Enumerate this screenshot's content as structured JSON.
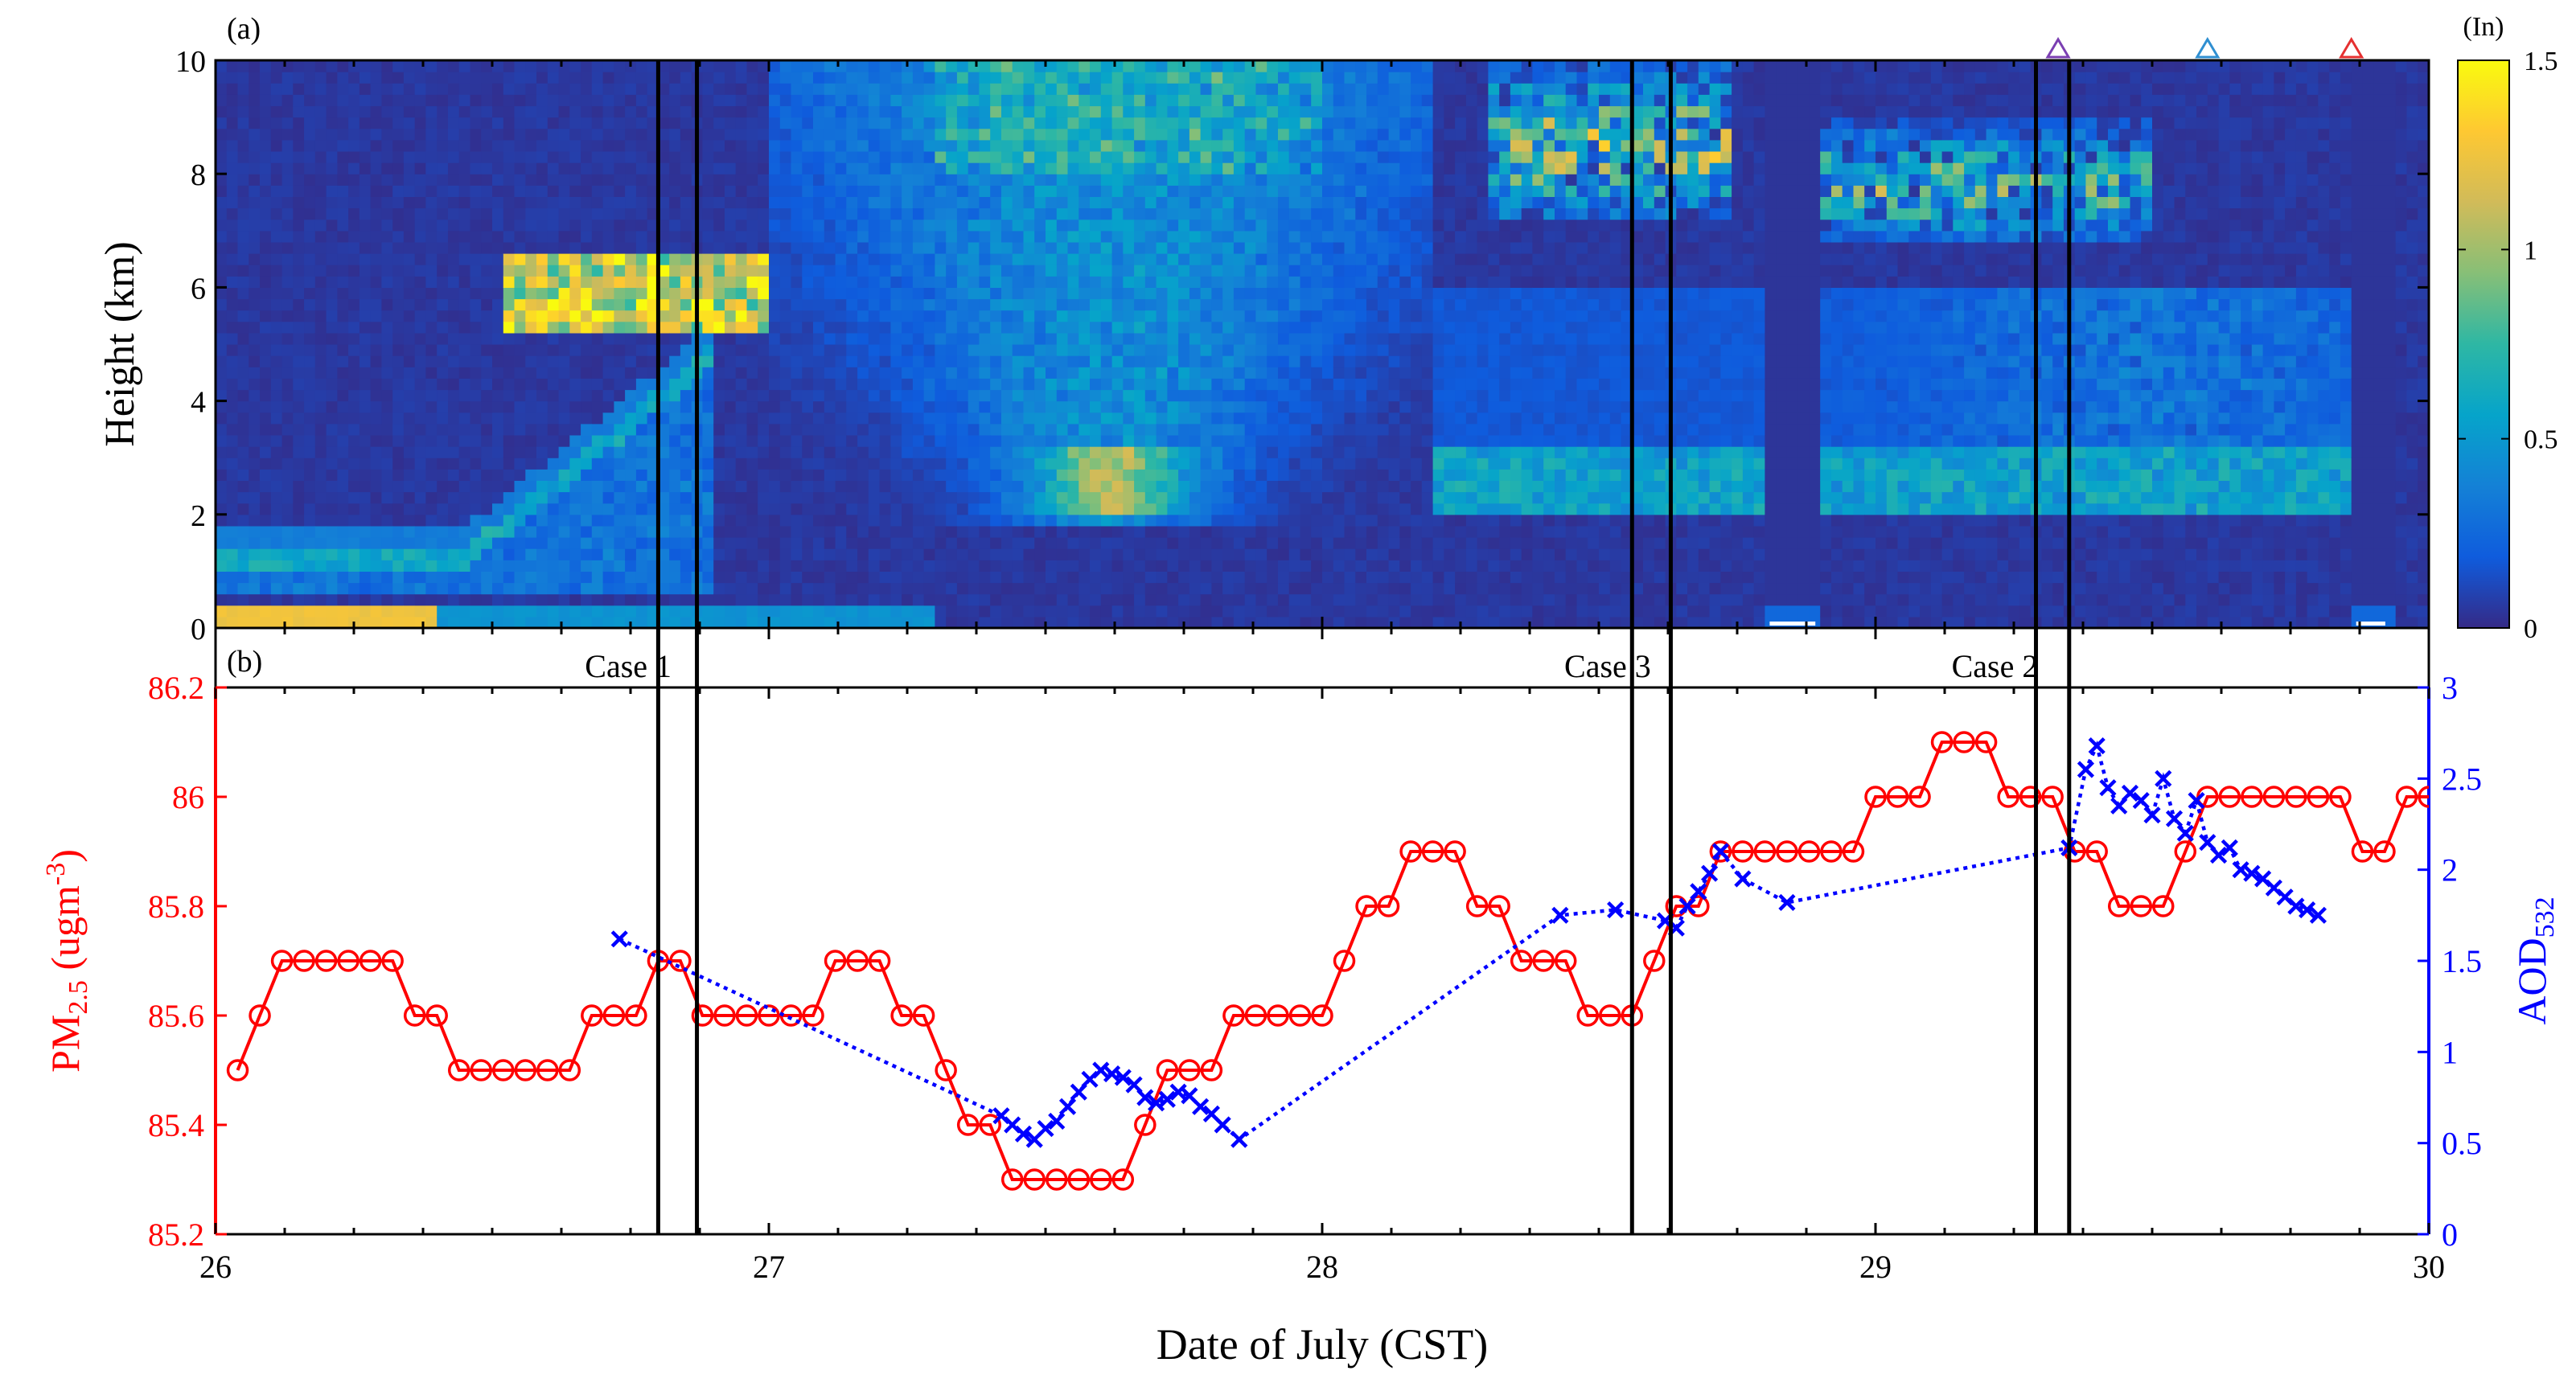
{
  "chart_data": [
    {
      "panel_label": "(a)",
      "type": "heatmap",
      "title": "",
      "xlabel": "",
      "ylabel": "Height (km)",
      "xlim": [
        26,
        30
      ],
      "ylim": [
        0,
        10
      ],
      "yticks": [
        0,
        2,
        4,
        6,
        8,
        10
      ],
      "ytick_labels": [
        "0",
        "2",
        "4",
        "6",
        "8",
        "10"
      ],
      "colorbar": {
        "label": "(In)",
        "range": [
          0,
          1.5
        ],
        "ticks": [
          0,
          0.5,
          1,
          1.5
        ],
        "tick_labels": [
          "0",
          "0.5",
          "1",
          "1.5"
        ],
        "colormap": [
          "#352a87",
          "#0f5cdd",
          "#1481d6",
          "#06a4ca",
          "#2eb7a4",
          "#87bf77",
          "#d1bb59",
          "#fec832",
          "#f9fb0e"
        ]
      },
      "features": [
        {
          "name": "near-surface aerosol layer",
          "x": [
            26.0,
            27.3
          ],
          "y": [
            0.1,
            0.4
          ],
          "intensity": 1.2
        },
        {
          "name": "boundary layer top",
          "x": [
            26.0,
            26.6
          ],
          "y": [
            1.2,
            1.8
          ],
          "intensity": 0.7
        },
        {
          "name": "mid-level cloud",
          "x": [
            26.52,
            27.0
          ],
          "y": [
            5.6,
            6.5
          ],
          "intensity": 1.5
        },
        {
          "name": "mid-level aerosol layer",
          "x": [
            27.4,
            29.9
          ],
          "y": [
            2.0,
            3.2
          ],
          "intensity": 0.55
        },
        {
          "name": "high cirrus",
          "x": [
            28.3,
            29.7
          ],
          "y": [
            7.0,
            10.0
          ],
          "intensity": 1.5
        }
      ],
      "data_gaps": [
        [
          28.8,
          28.9
        ],
        [
          29.86,
          29.93
        ]
      ],
      "markers": [
        {
          "shape": "triangle",
          "x": 29.33,
          "color": "#7b3fb2"
        },
        {
          "shape": "triangle",
          "x": 29.6,
          "color": "#2f8fd1"
        },
        {
          "shape": "triangle",
          "x": 29.86,
          "color": "#e53030"
        }
      ]
    },
    {
      "panel_label": "(b)",
      "type": "line",
      "xlabel": "Date of July (CST)",
      "xlim": [
        26,
        30
      ],
      "xticks": [
        26,
        27,
        28,
        29,
        30
      ],
      "xtick_labels": [
        "26",
        "27",
        "28",
        "29",
        "30"
      ],
      "ylabel_left": "PM",
      "ylabel_left_sub": "2.5",
      "ylabel_left_unit": " (ugm",
      "ylabel_left_sup": "-3",
      "ylabel_left_end": ")",
      "ylim_left": [
        85.2,
        86.2
      ],
      "yticks_left": [
        85.2,
        85.4,
        85.6,
        85.8,
        86,
        86.2
      ],
      "ytick_labels_left": [
        "85.2",
        "85.4",
        "85.6",
        "85.8",
        "86",
        "86.2"
      ],
      "ylabel_right": "AOD",
      "ylabel_right_sub": "532",
      "ylim_right": [
        0,
        3
      ],
      "yticks_right": [
        0,
        0.5,
        1,
        1.5,
        2,
        2.5,
        3
      ],
      "ytick_labels_right": [
        "0",
        "0.5",
        "1",
        "1.5",
        "2",
        "2.5",
        "3"
      ],
      "case_labels": [
        {
          "label": "Case 1",
          "x": 26.83
        },
        {
          "label": "Case 3",
          "x": 28.6
        },
        {
          "label": "Case 2",
          "x": 29.3
        }
      ],
      "case_lines": [
        [
          26.8,
          26.87
        ],
        [
          28.56,
          28.63
        ],
        [
          29.29,
          29.35
        ]
      ],
      "series": [
        {
          "name": "PM2.5",
          "color": "#ff0000",
          "marker": "circle",
          "axis": "left",
          "x": [
            26.04,
            26.08,
            26.12,
            26.16,
            26.2,
            26.24,
            26.28,
            26.32,
            26.36,
            26.4,
            26.44,
            26.48,
            26.52,
            26.56,
            26.6,
            26.64,
            26.68,
            26.72,
            26.76,
            26.8,
            26.84,
            26.88,
            26.92,
            26.96,
            27.0,
            27.04,
            27.08,
            27.12,
            27.16,
            27.2,
            27.24,
            27.28,
            27.32,
            27.36,
            27.4,
            27.44,
            27.48,
            27.52,
            27.56,
            27.6,
            27.64,
            27.68,
            27.72,
            27.76,
            27.8,
            27.84,
            27.88,
            27.92,
            27.96,
            28.0,
            28.04,
            28.08,
            28.12,
            28.16,
            28.2,
            28.24,
            28.28,
            28.32,
            28.36,
            28.4,
            28.44,
            28.48,
            28.52,
            28.56,
            28.6,
            28.64,
            28.68,
            28.72,
            28.76,
            28.8,
            28.84,
            28.88,
            28.92,
            28.96,
            29.0,
            29.04,
            29.08,
            29.12,
            29.16,
            29.2,
            29.24,
            29.28,
            29.32,
            29.36,
            29.4,
            29.44,
            29.48,
            29.52,
            29.56,
            29.6,
            29.64,
            29.68,
            29.72,
            29.76,
            29.8,
            29.84,
            29.88,
            29.92,
            29.96,
            30.0
          ],
          "values": [
            85.5,
            85.6,
            85.7,
            85.7,
            85.7,
            85.7,
            85.7,
            85.7,
            85.6,
            85.6,
            85.5,
            85.5,
            85.5,
            85.5,
            85.5,
            85.5,
            85.6,
            85.6,
            85.6,
            85.7,
            85.7,
            85.6,
            85.6,
            85.6,
            85.6,
            85.6,
            85.6,
            85.7,
            85.7,
            85.7,
            85.6,
            85.6,
            85.5,
            85.4,
            85.4,
            85.3,
            85.3,
            85.3,
            85.3,
            85.3,
            85.3,
            85.4,
            85.5,
            85.5,
            85.5,
            85.6,
            85.6,
            85.6,
            85.6,
            85.6,
            85.7,
            85.8,
            85.8,
            85.9,
            85.9,
            85.9,
            85.8,
            85.8,
            85.7,
            85.7,
            85.7,
            85.6,
            85.6,
            85.6,
            85.7,
            85.8,
            85.8,
            85.9,
            85.9,
            85.9,
            85.9,
            85.9,
            85.9,
            85.9,
            86.0,
            86.0,
            86.0,
            86.1,
            86.1,
            86.1,
            86.0,
            86.0,
            86.0,
            85.9,
            85.9,
            85.8,
            85.8,
            85.8,
            85.9,
            86.0,
            86.0,
            86.0,
            86.0,
            86.0,
            86.0,
            86.0,
            85.9,
            85.9,
            86.0,
            86.0
          ]
        },
        {
          "name": "AOD532",
          "color": "#0000ff",
          "marker": "x",
          "axis": "right",
          "x": [
            26.73,
            27.42,
            27.44,
            27.46,
            27.48,
            27.5,
            27.52,
            27.54,
            27.56,
            27.58,
            27.6,
            27.62,
            27.64,
            27.66,
            27.68,
            27.7,
            27.72,
            27.74,
            27.76,
            27.78,
            27.8,
            27.82,
            27.85,
            28.43,
            28.53,
            28.62,
            28.64,
            28.66,
            28.68,
            28.7,
            28.72,
            28.76,
            28.84,
            29.35,
            29.38,
            29.4,
            29.42,
            29.44,
            29.46,
            29.48,
            29.5,
            29.52,
            29.54,
            29.56,
            29.58,
            29.6,
            29.62,
            29.64,
            29.66,
            29.68,
            29.7,
            29.72,
            29.74,
            29.76,
            29.78,
            29.8
          ],
          "values": [
            1.62,
            0.65,
            0.6,
            0.55,
            0.52,
            0.58,
            0.62,
            0.7,
            0.78,
            0.85,
            0.9,
            0.88,
            0.86,
            0.82,
            0.75,
            0.72,
            0.74,
            0.78,
            0.76,
            0.7,
            0.66,
            0.6,
            0.52,
            1.75,
            1.78,
            1.72,
            1.68,
            1.8,
            1.88,
            1.98,
            2.1,
            1.95,
            1.82,
            2.12,
            2.55,
            2.68,
            2.45,
            2.35,
            2.42,
            2.38,
            2.3,
            2.5,
            2.28,
            2.2,
            2.38,
            2.15,
            2.08,
            2.12,
            2.0,
            1.98,
            1.95,
            1.9,
            1.85,
            1.8,
            1.78,
            1.75
          ]
        }
      ]
    }
  ]
}
